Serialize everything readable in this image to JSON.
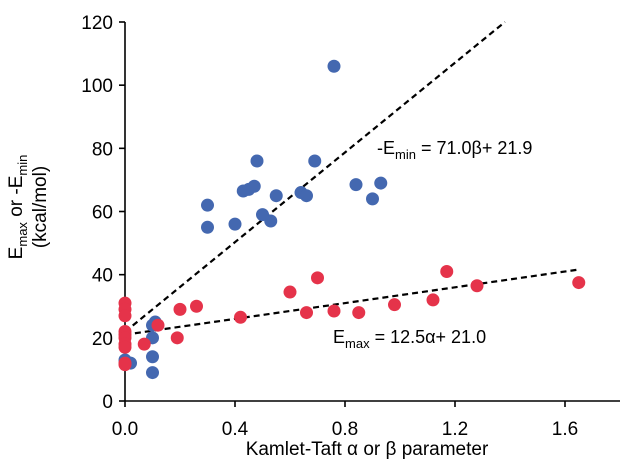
{
  "chart_data": {
    "type": "scatter",
    "xlabel": "Kamlet-Taft α or β parameter",
    "ylabel": {
      "line1": {
        "a": "E",
        "a_sub": "max",
        "b": " or -E",
        "b_sub": "min"
      },
      "line2": "(kcal/mol)"
    },
    "xlim": [
      0,
      1.8
    ],
    "ylim": [
      0,
      120
    ],
    "x_ticks": [
      0.0,
      0.4,
      0.8,
      1.2,
      1.6
    ],
    "x_tick_labels": [
      "0.0",
      "0.4",
      "0.8",
      "1.2",
      "1.6"
    ],
    "y_ticks": [
      0,
      20,
      40,
      60,
      80,
      100,
      120
    ],
    "y_tick_labels": [
      "0",
      "20",
      "40",
      "60",
      "80",
      "100",
      "120"
    ],
    "grid": false,
    "series": [
      {
        "color": "#4468b0",
        "fit": {
          "slope": 71.0,
          "intercept": 21.9,
          "x_range": [
            0,
            1.41
          ]
        },
        "annotation": {
          "pre": "-E",
          "sub": "min",
          "post": " = 71.0β+ 21.9"
        },
        "points": [
          [
            0.0,
            13
          ],
          [
            0.02,
            12
          ],
          [
            0.1,
            9
          ],
          [
            0.1,
            14
          ],
          [
            0.1,
            20
          ],
          [
            0.1,
            24
          ],
          [
            0.11,
            25
          ],
          [
            0.3,
            62
          ],
          [
            0.3,
            55
          ],
          [
            0.4,
            56
          ],
          [
            0.43,
            66.5
          ],
          [
            0.45,
            67
          ],
          [
            0.47,
            68
          ],
          [
            0.48,
            76
          ],
          [
            0.5,
            59
          ],
          [
            0.53,
            57
          ],
          [
            0.55,
            65
          ],
          [
            0.64,
            66
          ],
          [
            0.66,
            65
          ],
          [
            0.69,
            76
          ],
          [
            0.76,
            106
          ],
          [
            0.84,
            68.5
          ],
          [
            0.9,
            64
          ],
          [
            0.93,
            69
          ]
        ]
      },
      {
        "color": "#e5334a",
        "fit": {
          "slope": 12.5,
          "intercept": 21.0,
          "x_range": [
            0,
            1.65
          ]
        },
        "annotation": {
          "pre": "E",
          "sub": "max",
          "post": " = 12.5α+ 21.0"
        },
        "points": [
          [
            0.0,
            31
          ],
          [
            0.0,
            29
          ],
          [
            0.0,
            27
          ],
          [
            0.0,
            22
          ],
          [
            0.0,
            21
          ],
          [
            0.0,
            20
          ],
          [
            0.0,
            18
          ],
          [
            0.0,
            17
          ],
          [
            0.0,
            12
          ],
          [
            0.0,
            11.5
          ],
          [
            0.07,
            18
          ],
          [
            0.12,
            24
          ],
          [
            0.19,
            20
          ],
          [
            0.2,
            29
          ],
          [
            0.26,
            30
          ],
          [
            0.42,
            26.5
          ],
          [
            0.6,
            34.5
          ],
          [
            0.66,
            28
          ],
          [
            0.7,
            39
          ],
          [
            0.76,
            28.5
          ],
          [
            0.85,
            28
          ],
          [
            0.98,
            30.5
          ],
          [
            1.12,
            32
          ],
          [
            1.17,
            41
          ],
          [
            1.28,
            36.5
          ],
          [
            1.65,
            37.5
          ]
        ]
      }
    ]
  }
}
